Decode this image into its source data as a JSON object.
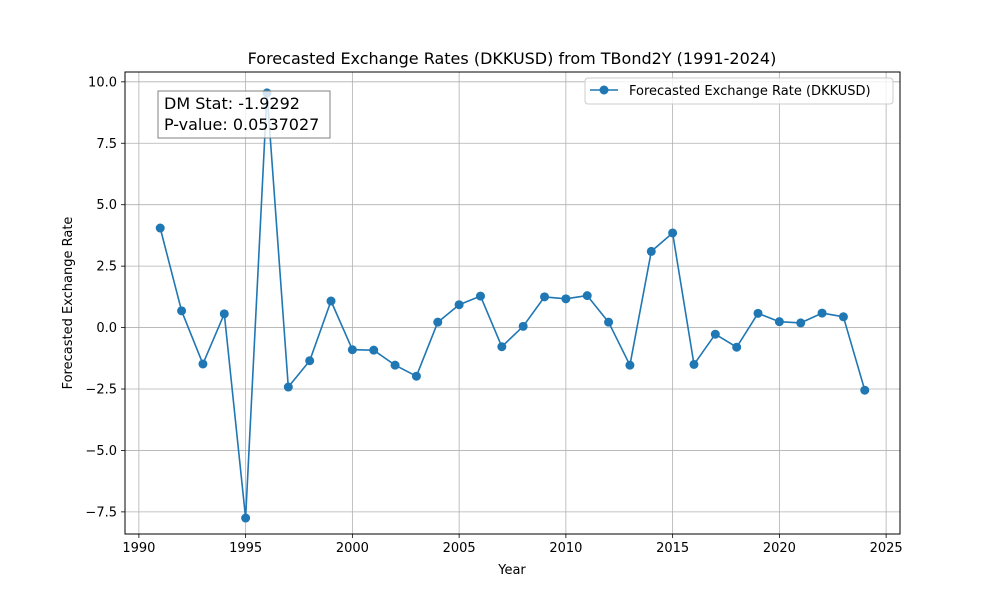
{
  "chart_data": {
    "type": "line",
    "title": "Forecasted Exchange Rates (DKKUSD) from TBond2Y (1991-2024)",
    "xlabel": "Year",
    "ylabel": "Forecasted Exchange Rate",
    "xlim": [
      1989.35,
      2025.65
    ],
    "ylim": [
      -8.4,
      10.4
    ],
    "x_ticks": [
      1990,
      1995,
      2000,
      2005,
      2010,
      2015,
      2020,
      2025
    ],
    "x_tick_labels": [
      "1990",
      "1995",
      "2000",
      "2005",
      "2010",
      "2015",
      "2020",
      "2025"
    ],
    "y_ticks": [
      -7.5,
      -5.0,
      -2.5,
      0.0,
      2.5,
      5.0,
      7.5,
      10.0
    ],
    "y_tick_labels": [
      "−7.5",
      "−5.0",
      "−2.5",
      "0.0",
      "2.5",
      "5.0",
      "7.5",
      "10.0"
    ],
    "grid": true,
    "legend_position": "top-right",
    "series": [
      {
        "name": "Forecasted Exchange Rate (DKKUSD)",
        "color": "#1f77b4",
        "marker": "circle",
        "x": [
          1991,
          1992,
          1993,
          1994,
          1995,
          1996,
          1997,
          1998,
          1999,
          2000,
          2001,
          2002,
          2003,
          2004,
          2005,
          2006,
          2007,
          2008,
          2009,
          2010,
          2011,
          2012,
          2013,
          2014,
          2015,
          2016,
          2017,
          2018,
          2019,
          2020,
          2021,
          2022,
          2023,
          2024
        ],
        "values": [
          4.05,
          0.68,
          -1.48,
          0.56,
          -7.75,
          9.55,
          -2.42,
          -1.35,
          1.08,
          -0.9,
          -0.92,
          -1.53,
          -1.98,
          0.22,
          0.93,
          1.28,
          -0.78,
          0.05,
          1.25,
          1.17,
          1.3,
          0.22,
          -1.53,
          3.1,
          3.85,
          -1.5,
          -0.27,
          -0.8,
          0.58,
          0.24,
          0.19,
          0.59,
          0.44,
          -2.55
        ]
      }
    ],
    "annotations": [
      {
        "id": "dm_stat",
        "text": "DM Stat: -1.9292"
      },
      {
        "id": "p_value",
        "text": "P-value: 0.0537027"
      }
    ]
  }
}
